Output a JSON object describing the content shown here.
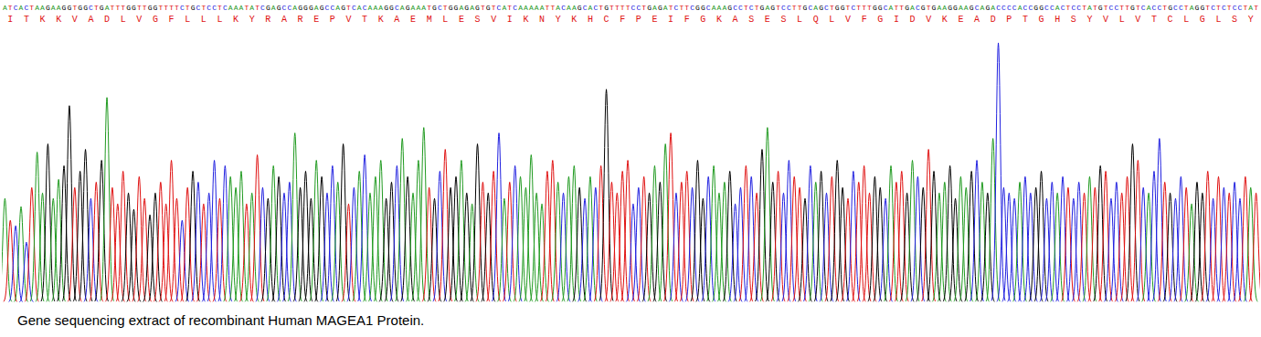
{
  "chart_data": {
    "type": "chromatogram",
    "title": "Gene sequencing extract of recombinant Human MAGEA1 Protein.",
    "sequence": "ATCACTAAGAAGGTGGCTGATTTGGTTGGTTTTCTGCTCCTCAAATATCGAGCCAGGGAGCCAGTCACAAAGGCAGAAATGCTGGAGAGTGTCATCAAAAATTACAAGCACTGTTTTCCTGAGATCTTCGGCAAAGCCTCTGAGTCCTTGCAGCTGGTCTTTGGCATTGACGTGAAGGAAGCAGACCCCACCGGCCACTCCTATGTCCTTGTCACCTGCCTAGGTCTCTCCTAT",
    "translation": [
      "I",
      "T",
      "K",
      "K",
      "V",
      "A",
      "D",
      "L",
      "V",
      "G",
      "F",
      "L",
      "L",
      "L",
      "K",
      "Y",
      "R",
      "A",
      "R",
      "E",
      "P",
      "V",
      "T",
      "K",
      "A",
      "E",
      "M",
      "L",
      "E",
      "S",
      "V",
      "I",
      "K",
      "N",
      "Y",
      "K",
      "H",
      "C",
      "F",
      "P",
      "E",
      "I",
      "F",
      "G",
      "K",
      "A",
      "S",
      "E",
      "S",
      "L",
      "Q",
      "L",
      "V",
      "F",
      "G",
      "I",
      "D",
      "V",
      "K",
      "E",
      "A",
      "D",
      "P",
      "T",
      "G",
      "H",
      "S",
      "Y",
      "V",
      "L",
      "V",
      "T",
      "C",
      "L",
      "G",
      "L",
      "S",
      "Y"
    ],
    "colors": {
      "A": "#1f9a1f",
      "C": "#2020e0",
      "G": "#000000",
      "T": "#e01010"
    },
    "heights": [
      38,
      30,
      28,
      35,
      22,
      42,
      55,
      40,
      58,
      38,
      45,
      50,
      72,
      42,
      48,
      56,
      38,
      44,
      52,
      75,
      42,
      36,
      48,
      40,
      34,
      46,
      38,
      32,
      40,
      44,
      36,
      52,
      38,
      30,
      42,
      48,
      44,
      36,
      40,
      52,
      38,
      50,
      46,
      42,
      48,
      36,
      40,
      54,
      42,
      38,
      50,
      46,
      40,
      44,
      62,
      42,
      48,
      38,
      52,
      46,
      40,
      50,
      44,
      58,
      36,
      42,
      48,
      54,
      40,
      46,
      52,
      38,
      44,
      50,
      60,
      46,
      40,
      52,
      64,
      42,
      38,
      48,
      56,
      42,
      46,
      52,
      40,
      36,
      58,
      44,
      40,
      48,
      62,
      38,
      44,
      50,
      46,
      42,
      54,
      40,
      36,
      48,
      52,
      44,
      40,
      46,
      50,
      42,
      38,
      46,
      42,
      50,
      78,
      44,
      40,
      48,
      52,
      36,
      42,
      46,
      40,
      50,
      44,
      58,
      62,
      40,
      44,
      48,
      42,
      52,
      38,
      46,
      50,
      40,
      44,
      48,
      36,
      42,
      50,
      46,
      40,
      56,
      64,
      44,
      48,
      40,
      52,
      46,
      42,
      38,
      50,
      44,
      48,
      40,
      46,
      52,
      42,
      38,
      48,
      44,
      50,
      40,
      46,
      42,
      38,
      50,
      44,
      48,
      40,
      52,
      46,
      42,
      56,
      48,
      40,
      44,
      50,
      38,
      46,
      42,
      48,
      52,
      44,
      40,
      60,
      95,
      42,
      40,
      38,
      44,
      46,
      40,
      42,
      48,
      38,
      44,
      40,
      46,
      42,
      38,
      44,
      40,
      46,
      42,
      50,
      48,
      38,
      44,
      40,
      46,
      58,
      52,
      42,
      40,
      48,
      60,
      44,
      40,
      38,
      46,
      42,
      36,
      44,
      40,
      48,
      38,
      46,
      42,
      40,
      44,
      38,
      46,
      42,
      40
    ],
    "ylim": [
      0,
      100
    ],
    "tick_labels": false,
    "grid": false
  }
}
